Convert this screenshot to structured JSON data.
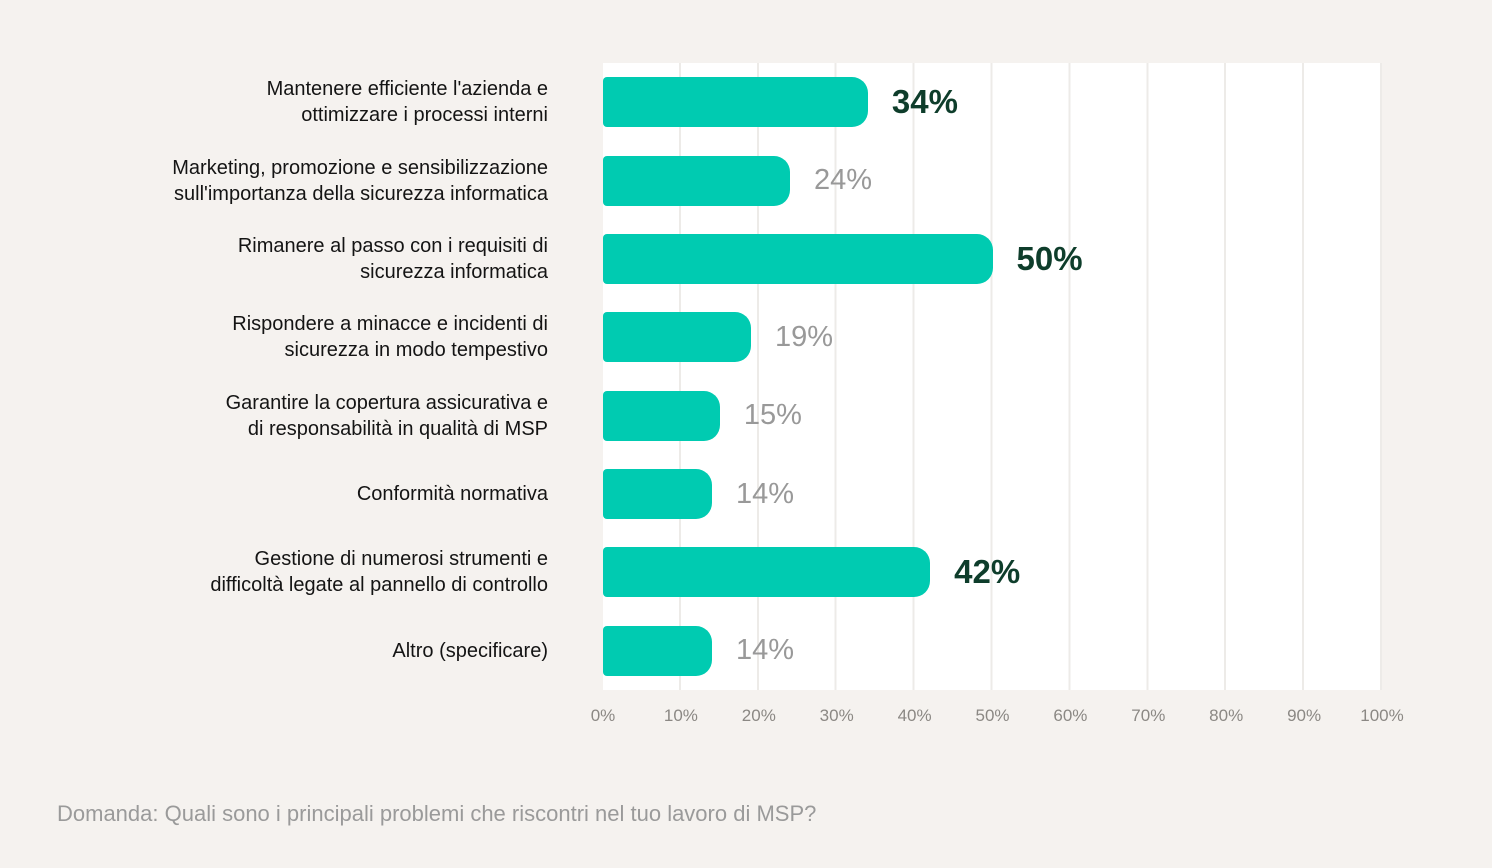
{
  "chart_data": {
    "type": "bar",
    "orientation": "horizontal",
    "categories": [
      "Mantenere efficiente l'azienda e\nottimizzare i processi interni",
      "Marketing, promozione e sensibilizzazione\nsull'importanza della sicurezza informatica",
      "Rimanere al passo con i requisiti di\nsicurezza informatica",
      "Rispondere a minacce e incidenti di\nsicurezza in modo tempestivo",
      "Garantire la copertura assicurativa e\ndi responsabilità in qualità di MSP",
      "Conformità normativa",
      "Gestione di numerosi strumenti e\ndifficoltà legate al pannello di controllo",
      "Altro (specificare)"
    ],
    "values": [
      34,
      24,
      50,
      19,
      15,
      14,
      42,
      14
    ],
    "value_labels": [
      "34%",
      "24%",
      "50%",
      "19%",
      "15%",
      "14%",
      "42%",
      "14%"
    ],
    "emphasis": [
      true,
      false,
      true,
      false,
      false,
      false,
      true,
      false
    ],
    "x_ticks": [
      "0%",
      "10%",
      "20%",
      "30%",
      "40%",
      "50%",
      "60%",
      "70%",
      "80%",
      "90%",
      "100%"
    ],
    "xlim": [
      0,
      100
    ],
    "grid": "vertical",
    "legend": "none",
    "title": "",
    "xlabel": "",
    "ylabel": "",
    "bar_color": "#00CBB1",
    "emphasized_value_color": "#0E3D2B",
    "muted_value_color": "#999999"
  },
  "footnote": "Domanda: Quali sono i principali problemi che riscontri nel tuo lavoro di MSP?"
}
